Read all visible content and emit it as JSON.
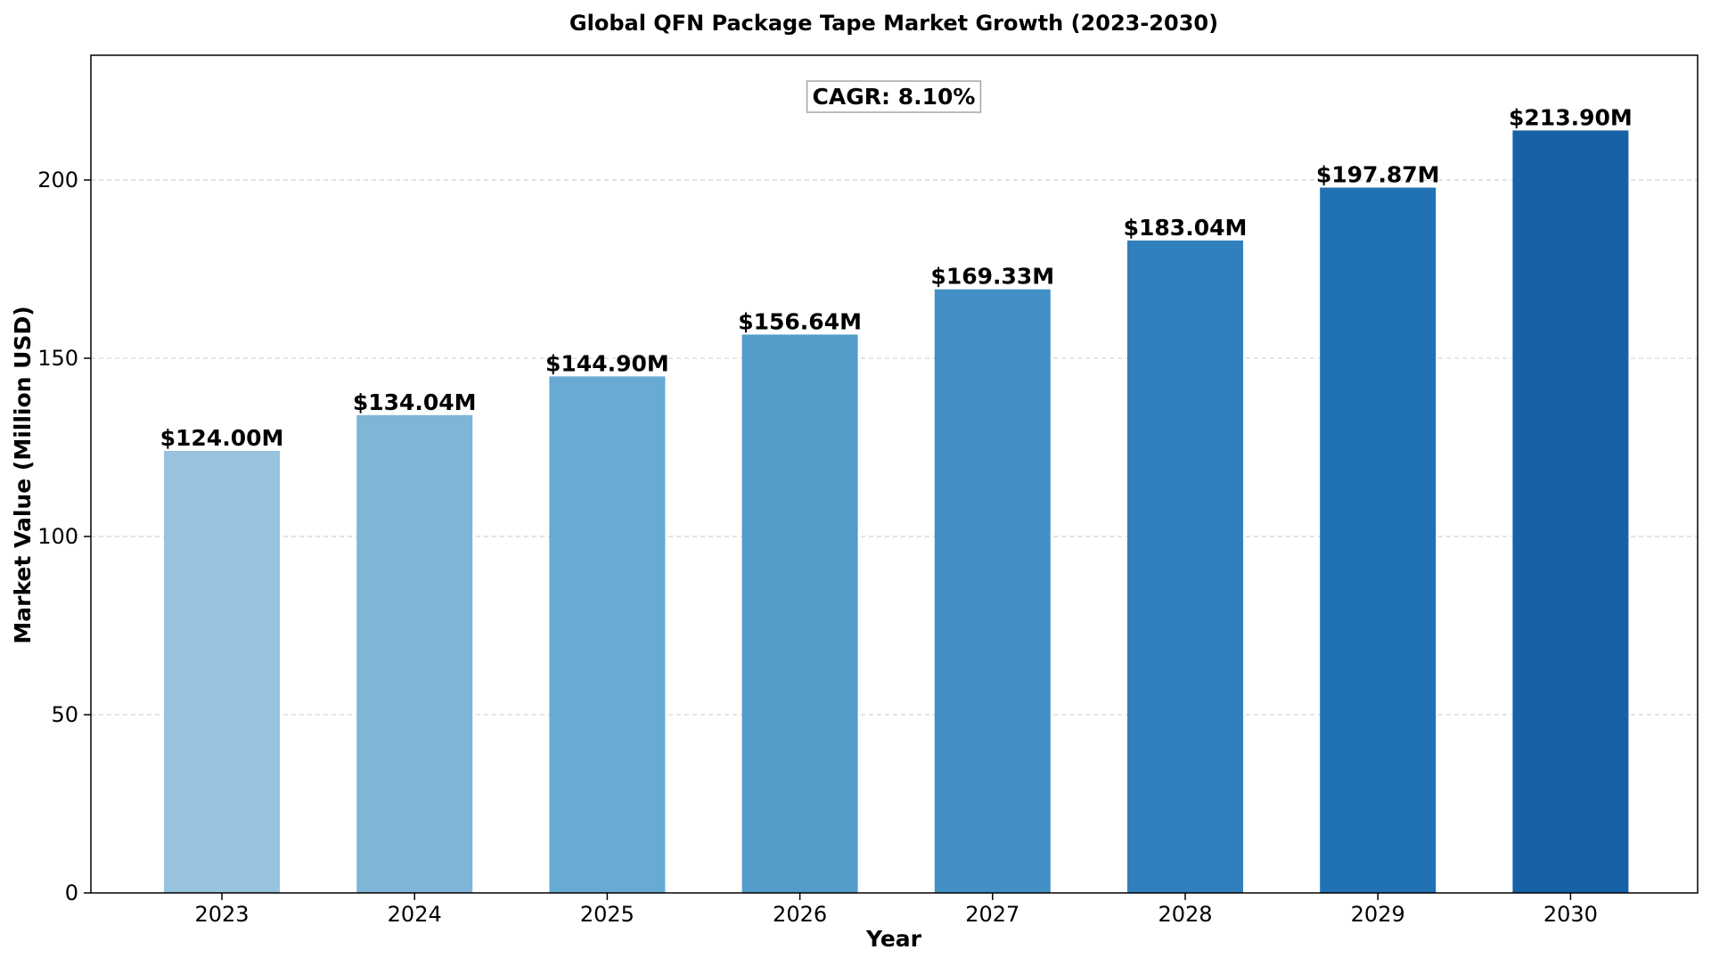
{
  "chart_data": {
    "type": "bar",
    "title": "Global QFN Package Tape Market Growth (2023-2030)",
    "xlabel": "Year",
    "ylabel": "Market Value (Million USD)",
    "categories": [
      "2023",
      "2024",
      "2025",
      "2026",
      "2027",
      "2028",
      "2029",
      "2030"
    ],
    "values": [
      124.0,
      134.04,
      144.9,
      156.64,
      169.33,
      183.04,
      197.87,
      213.9
    ],
    "data_labels": [
      "$124.00M",
      "$134.04M",
      "$144.90M",
      "$156.64M",
      "$169.33M",
      "$183.04M",
      "$197.87M",
      "$213.90M"
    ],
    "bar_colors": [
      "#97c3df",
      "#7fb5d7",
      "#67aad3",
      "#539cca",
      "#4290c5",
      "#3180bd",
      "#2171b5",
      "#1761a7"
    ],
    "ylim": [
      0,
      235
    ],
    "yticks": [
      0,
      50,
      100,
      150,
      200
    ],
    "ytick_labels": [
      "0",
      "50",
      "100",
      "150",
      "200"
    ],
    "grid": "y-dashed",
    "annotation": "CAGR: 8.10%"
  }
}
